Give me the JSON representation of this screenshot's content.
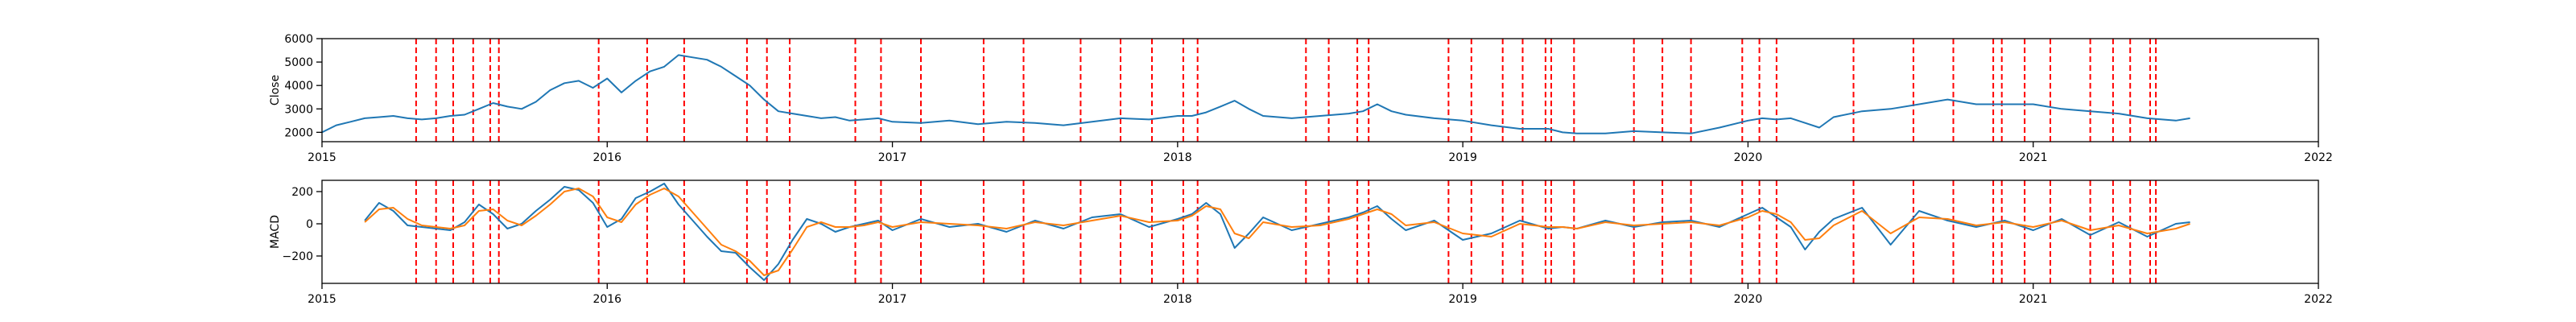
{
  "chart_data": [
    {
      "type": "line",
      "ylabel": "Close",
      "xlim": [
        2015,
        2022
      ],
      "ylim": [
        1600,
        6000
      ],
      "xticks": [
        2015,
        2016,
        2017,
        2018,
        2019,
        2020,
        2021,
        2022
      ],
      "xtick_labels": [
        "2015",
        "2016",
        "2017",
        "2018",
        "2019",
        "2020",
        "2021",
        "2022"
      ],
      "yticks": [
        2000,
        3000,
        4000,
        5000,
        6000
      ],
      "ytick_labels": [
        "2000",
        "3000",
        "4000",
        "5000",
        "6000"
      ],
      "grid": false,
      "series": [
        {
          "color": "#1f77b4",
          "x": [
            2015.0,
            2015.05,
            2015.1,
            2015.15,
            2015.2,
            2015.25,
            2015.3,
            2015.35,
            2015.4,
            2015.45,
            2015.5,
            2015.55,
            2015.6,
            2015.65,
            2015.7,
            2015.75,
            2015.8,
            2015.85,
            2015.9,
            2015.95,
            2016.0,
            2016.05,
            2016.1,
            2016.15,
            2016.2,
            2016.25,
            2016.3,
            2016.35,
            2016.4,
            2016.45,
            2016.5,
            2016.55,
            2016.6,
            2016.65,
            2016.7,
            2016.75,
            2016.8,
            2016.85,
            2016.9,
            2016.95,
            2017.0,
            2017.1,
            2017.2,
            2017.3,
            2017.4,
            2017.5,
            2017.6,
            2017.7,
            2017.8,
            2017.9,
            2018.0,
            2018.05,
            2018.1,
            2018.15,
            2018.2,
            2018.25,
            2018.3,
            2018.4,
            2018.5,
            2018.6,
            2018.65,
            2018.7,
            2018.75,
            2018.8,
            2018.9,
            2019.0,
            2019.1,
            2019.2,
            2019.3,
            2019.35,
            2019.4,
            2019.5,
            2019.6,
            2019.7,
            2019.8,
            2019.9,
            2020.0,
            2020.05,
            2020.1,
            2020.15,
            2020.2,
            2020.25,
            2020.3,
            2020.4,
            2020.5,
            2020.6,
            2020.7,
            2020.8,
            2020.9,
            2021.0,
            2021.1,
            2021.2,
            2021.3,
            2021.4,
            2021.5,
            2021.55
          ],
          "y": [
            2000,
            2300,
            2450,
            2600,
            2650,
            2700,
            2600,
            2550,
            2600,
            2700,
            2750,
            3000,
            3250,
            3100,
            3000,
            3300,
            3800,
            4100,
            4200,
            3900,
            4300,
            3700,
            4200,
            4600,
            4800,
            5300,
            5200,
            5100,
            4800,
            4400,
            4000,
            3400,
            2900,
            2800,
            2700,
            2600,
            2650,
            2500,
            2550,
            2600,
            2450,
            2400,
            2500,
            2350,
            2450,
            2400,
            2300,
            2450,
            2600,
            2550,
            2700,
            2700,
            2850,
            3100,
            3350,
            3000,
            2700,
            2600,
            2700,
            2800,
            2900,
            3200,
            2900,
            2750,
            2600,
            2500,
            2300,
            2150,
            2150,
            2000,
            1950,
            1950,
            2050,
            2000,
            1950,
            2200,
            2500,
            2600,
            2550,
            2600,
            2400,
            2200,
            2650,
            2900,
            3000,
            3200,
            3400,
            3200,
            3200,
            3200,
            3000,
            2900,
            2800,
            2600,
            2500,
            2600
          ]
        }
      ],
      "vlines": [
        2015.33,
        2015.4,
        2015.46,
        2015.53,
        2015.59,
        2015.62,
        2015.97,
        2016.14,
        2016.27,
        2016.49,
        2016.56,
        2016.64,
        2016.87,
        2016.96,
        2017.1,
        2017.32,
        2017.46,
        2017.66,
        2017.8,
        2017.91,
        2018.02,
        2018.07,
        2018.45,
        2018.53,
        2018.63,
        2018.67,
        2018.95,
        2019.03,
        2019.14,
        2019.21,
        2019.29,
        2019.31,
        2019.39,
        2019.6,
        2019.7,
        2019.8,
        2019.98,
        2020.04,
        2020.1,
        2020.37,
        2020.58,
        2020.72,
        2020.86,
        2020.89,
        2020.97,
        2021.06,
        2021.2,
        2021.28,
        2021.34,
        2021.41,
        2021.43
      ],
      "vline_color": "#ff0000"
    },
    {
      "type": "line",
      "ylabel": "MACD",
      "xlim": [
        2015,
        2022
      ],
      "ylim": [
        -370,
        270
      ],
      "xticks": [
        2015,
        2016,
        2017,
        2018,
        2019,
        2020,
        2021,
        2022
      ],
      "xtick_labels": [
        "2015",
        "2016",
        "2017",
        "2018",
        "2019",
        "2020",
        "2021",
        "2022"
      ],
      "yticks": [
        -200,
        0,
        200
      ],
      "ytick_labels": [
        "−200",
        "0",
        "200"
      ],
      "grid": false,
      "series": [
        {
          "color": "#1f77b4",
          "x": [
            2015.15,
            2015.2,
            2015.25,
            2015.3,
            2015.35,
            2015.4,
            2015.45,
            2015.5,
            2015.55,
            2015.6,
            2015.65,
            2015.7,
            2015.75,
            2015.8,
            2015.85,
            2015.9,
            2015.95,
            2016.0,
            2016.05,
            2016.1,
            2016.15,
            2016.2,
            2016.25,
            2016.3,
            2016.35,
            2016.4,
            2016.45,
            2016.5,
            2016.55,
            2016.6,
            2016.65,
            2016.7,
            2016.75,
            2016.8,
            2016.85,
            2016.9,
            2016.95,
            2017.0,
            2017.1,
            2017.2,
            2017.3,
            2017.4,
            2017.5,
            2017.6,
            2017.7,
            2017.8,
            2017.9,
            2018.0,
            2018.05,
            2018.1,
            2018.15,
            2018.2,
            2018.25,
            2018.3,
            2018.4,
            2018.5,
            2018.6,
            2018.65,
            2018.7,
            2018.75,
            2018.8,
            2018.9,
            2019.0,
            2019.1,
            2019.2,
            2019.3,
            2019.35,
            2019.4,
            2019.5,
            2019.6,
            2019.7,
            2019.8,
            2019.9,
            2020.0,
            2020.05,
            2020.1,
            2020.15,
            2020.2,
            2020.25,
            2020.3,
            2020.4,
            2020.5,
            2020.6,
            2020.7,
            2020.8,
            2020.9,
            2021.0,
            2021.1,
            2021.2,
            2021.3,
            2021.4,
            2021.5,
            2021.55
          ],
          "y": [
            20,
            130,
            80,
            -10,
            -20,
            -30,
            -40,
            10,
            120,
            60,
            -30,
            0,
            80,
            150,
            230,
            210,
            130,
            -20,
            30,
            160,
            200,
            250,
            120,
            20,
            -80,
            -170,
            -180,
            -270,
            -350,
            -250,
            -100,
            30,
            0,
            -50,
            -20,
            0,
            20,
            -40,
            30,
            -20,
            0,
            -50,
            20,
            -30,
            40,
            60,
            -20,
            30,
            60,
            130,
            60,
            -150,
            -60,
            40,
            -40,
            0,
            40,
            70,
            110,
            30,
            -40,
            20,
            -100,
            -60,
            20,
            -30,
            -20,
            -30,
            20,
            -20,
            10,
            20,
            -20,
            60,
            100,
            40,
            -20,
            -160,
            -50,
            30,
            100,
            -130,
            80,
            20,
            -20,
            20,
            -40,
            30,
            -70,
            10,
            -80,
            0,
            10
          ]
        },
        {
          "color": "#ff7f0e",
          "x": [
            2015.15,
            2015.2,
            2015.25,
            2015.3,
            2015.35,
            2015.4,
            2015.45,
            2015.5,
            2015.55,
            2015.6,
            2015.65,
            2015.7,
            2015.75,
            2015.8,
            2015.85,
            2015.9,
            2015.95,
            2016.0,
            2016.05,
            2016.1,
            2016.15,
            2016.2,
            2016.25,
            2016.3,
            2016.35,
            2016.4,
            2016.45,
            2016.5,
            2016.55,
            2016.6,
            2016.65,
            2016.7,
            2016.75,
            2016.8,
            2016.85,
            2016.9,
            2016.95,
            2017.0,
            2017.1,
            2017.2,
            2017.3,
            2017.4,
            2017.5,
            2017.6,
            2017.7,
            2017.8,
            2017.9,
            2018.0,
            2018.05,
            2018.1,
            2018.15,
            2018.2,
            2018.25,
            2018.3,
            2018.4,
            2018.5,
            2018.6,
            2018.65,
            2018.7,
            2018.75,
            2018.8,
            2018.9,
            2019.0,
            2019.1,
            2019.2,
            2019.3,
            2019.35,
            2019.4,
            2019.5,
            2019.6,
            2019.7,
            2019.8,
            2019.9,
            2020.0,
            2020.05,
            2020.1,
            2020.15,
            2020.2,
            2020.25,
            2020.3,
            2020.4,
            2020.5,
            2020.6,
            2020.7,
            2020.8,
            2020.9,
            2021.0,
            2021.1,
            2021.2,
            2021.3,
            2021.4,
            2021.5,
            2021.55
          ],
          "y": [
            10,
            90,
            100,
            30,
            -10,
            -20,
            -30,
            -10,
            80,
            90,
            20,
            -10,
            50,
            120,
            200,
            220,
            170,
            40,
            10,
            120,
            180,
            220,
            170,
            70,
            -30,
            -130,
            -170,
            -230,
            -320,
            -290,
            -160,
            -20,
            10,
            -20,
            -20,
            -10,
            10,
            -20,
            10,
            0,
            -10,
            -30,
            10,
            -10,
            20,
            50,
            10,
            20,
            50,
            110,
            90,
            -60,
            -90,
            10,
            -20,
            -10,
            30,
            60,
            90,
            60,
            -10,
            10,
            -60,
            -80,
            0,
            -20,
            -20,
            -30,
            10,
            -10,
            0,
            10,
            -10,
            40,
            80,
            60,
            10,
            -100,
            -90,
            -10,
            80,
            -60,
            40,
            30,
            -10,
            10,
            -20,
            20,
            -40,
            -10,
            -60,
            -30,
            0
          ]
        }
      ],
      "vlines": [
        2015.33,
        2015.4,
        2015.46,
        2015.53,
        2015.59,
        2015.62,
        2015.97,
        2016.14,
        2016.27,
        2016.49,
        2016.56,
        2016.64,
        2016.87,
        2016.96,
        2017.1,
        2017.32,
        2017.46,
        2017.66,
        2017.8,
        2017.91,
        2018.02,
        2018.07,
        2018.45,
        2018.53,
        2018.63,
        2018.67,
        2018.95,
        2019.03,
        2019.14,
        2019.21,
        2019.29,
        2019.31,
        2019.39,
        2019.6,
        2019.7,
        2019.8,
        2019.98,
        2020.04,
        2020.1,
        2020.37,
        2020.58,
        2020.72,
        2020.86,
        2020.89,
        2020.97,
        2021.06,
        2021.2,
        2021.28,
        2021.34,
        2021.41,
        2021.43
      ],
      "vline_color": "#ff0000"
    }
  ]
}
